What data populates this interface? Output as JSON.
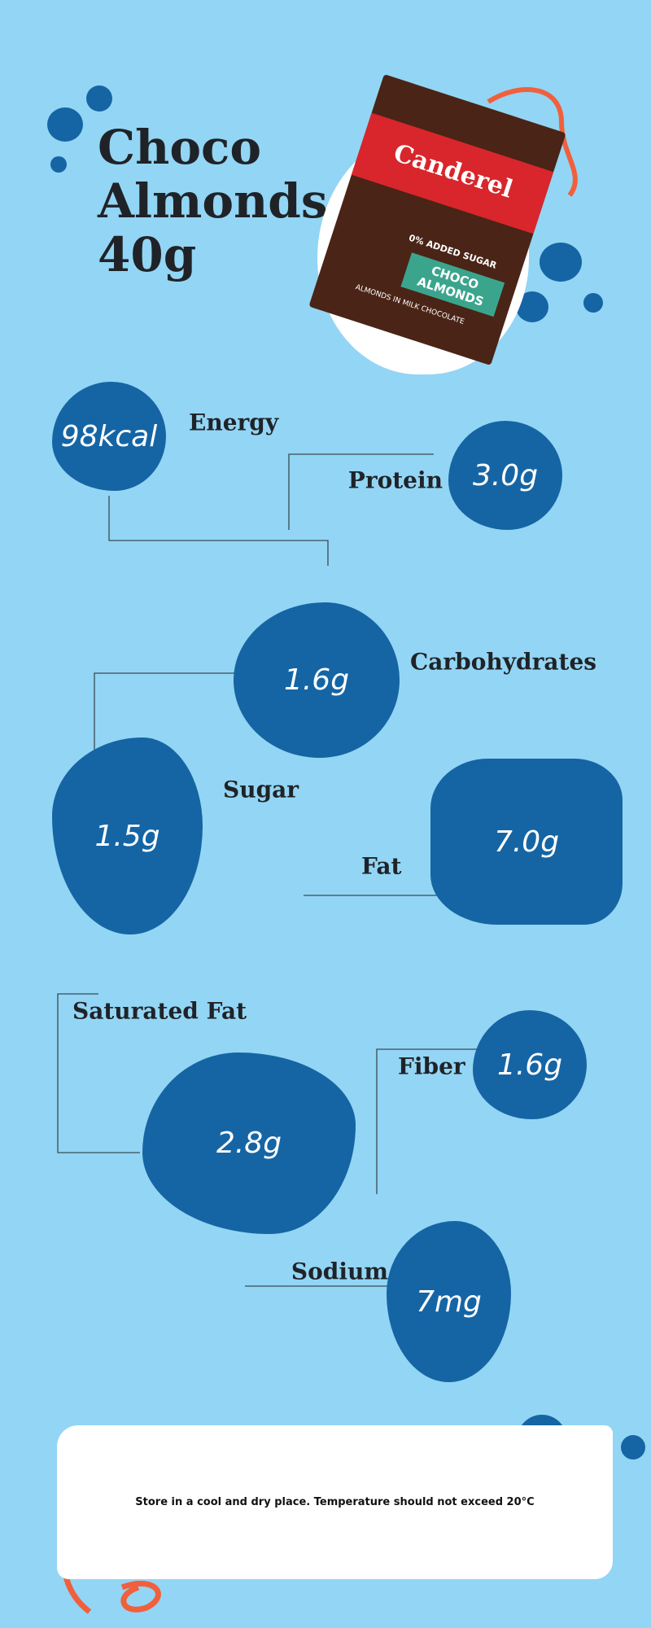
{
  "title": "Choco Almonds 40g",
  "package": {
    "brand": "Canderel",
    "claim": "0% ADDED SUGAR",
    "name": "CHOCO ALMONDS",
    "description": "ALMONDS IN MILK CHOCOLATE"
  },
  "nutrients": [
    {
      "label": "Energy",
      "value": "98kcal"
    },
    {
      "label": "Protein",
      "value": "3.0g"
    },
    {
      "label": "Carbohydrates",
      "value": "1.6g"
    },
    {
      "label": "Sugar",
      "value": "1.5g"
    },
    {
      "label": "Fat",
      "value": "7.0g"
    },
    {
      "label": "Saturated Fat",
      "value": "2.8g"
    },
    {
      "label": "Fiber",
      "value": "1.6g"
    },
    {
      "label": "Sodium",
      "value": "7mg"
    }
  ],
  "footer": {
    "note": "Store in a cool and dry place. Temperature should not exceed 20°C"
  }
}
